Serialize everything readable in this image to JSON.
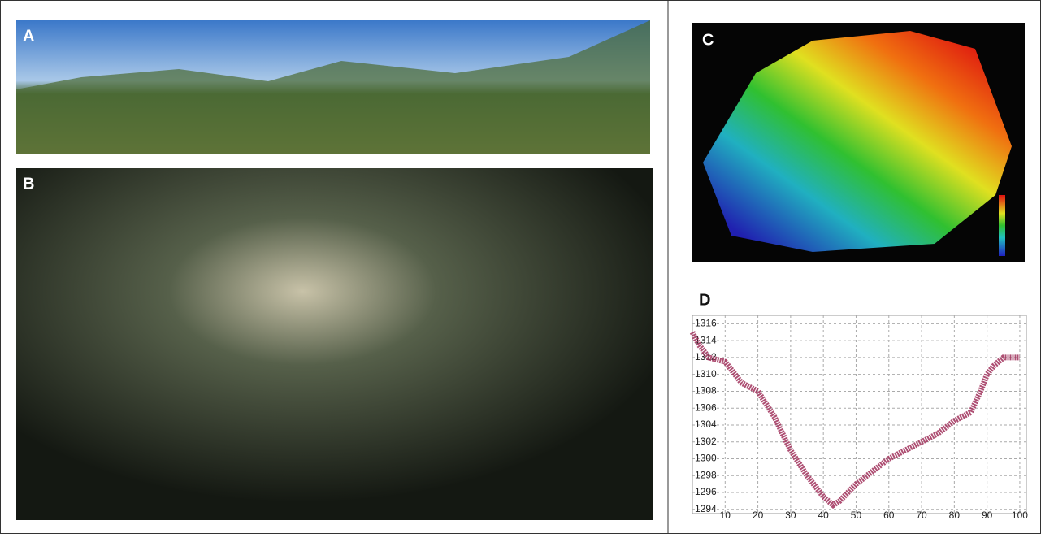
{
  "panels": [
    {
      "label": "A"
    },
    {
      "label": "B"
    },
    {
      "label": "C"
    },
    {
      "label": "D"
    }
  ],
  "chart_data": {
    "type": "line",
    "x": [
      0,
      2,
      5,
      10,
      15,
      20,
      25,
      30,
      35,
      40,
      43,
      45,
      50,
      55,
      60,
      65,
      70,
      75,
      80,
      85,
      88,
      90,
      92,
      95,
      100
    ],
    "values": [
      1315,
      1313.5,
      1312,
      1311.5,
      1309,
      1308,
      1305,
      1301,
      1298,
      1295.5,
      1294.5,
      1295,
      1297,
      1298.5,
      1300,
      1301,
      1302,
      1303,
      1304.5,
      1305.5,
      1308,
      1310,
      1311,
      1312,
      1312
    ],
    "color": "#a0305a",
    "xlim": [
      0,
      102
    ],
    "ylim": [
      1293.5,
      1317
    ],
    "xticks": [
      10,
      20,
      30,
      40,
      50,
      60,
      70,
      80,
      90,
      100
    ],
    "yticks": [
      1294,
      1296,
      1298,
      1300,
      1302,
      1304,
      1306,
      1308,
      1310,
      1312,
      1314,
      1316
    ],
    "grid": true
  }
}
